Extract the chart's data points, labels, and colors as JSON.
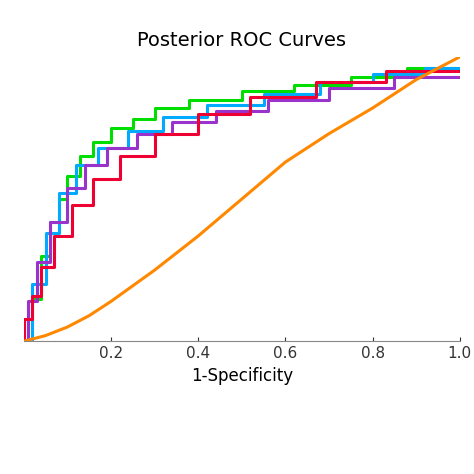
{
  "title": "Posterior ROC Curves",
  "xlabel": "1-Specificity",
  "xlim": [
    0,
    1.0
  ],
  "ylim": [
    0,
    1.0
  ],
  "xticks": [
    0.2,
    0.4,
    0.6,
    0.8,
    1.0
  ],
  "background_color": "#ffffff",
  "title_fontsize": 14,
  "curves": {
    "green": {
      "color": "#00dd00",
      "step": true,
      "fpr": [
        0,
        0.02,
        0.04,
        0.06,
        0.08,
        0.1,
        0.13,
        0.16,
        0.2,
        0.25,
        0.3,
        0.38,
        0.5,
        0.62,
        0.75,
        0.88,
        1.0
      ],
      "tpr": [
        0,
        0.15,
        0.3,
        0.42,
        0.5,
        0.58,
        0.65,
        0.7,
        0.75,
        0.78,
        0.82,
        0.85,
        0.88,
        0.9,
        0.93,
        0.96,
        0.96
      ]
    },
    "blue": {
      "color": "#00aaff",
      "step": true,
      "fpr": [
        0,
        0.02,
        0.05,
        0.08,
        0.12,
        0.17,
        0.24,
        0.32,
        0.42,
        0.55,
        0.68,
        0.8,
        0.92,
        1.0
      ],
      "tpr": [
        0,
        0.2,
        0.38,
        0.52,
        0.62,
        0.68,
        0.74,
        0.79,
        0.83,
        0.87,
        0.91,
        0.94,
        0.96,
        0.96
      ]
    },
    "purple": {
      "color": "#9933cc",
      "step": true,
      "fpr": [
        0,
        0.01,
        0.03,
        0.06,
        0.1,
        0.14,
        0.19,
        0.26,
        0.34,
        0.44,
        0.56,
        0.7,
        0.85,
        1.0
      ],
      "tpr": [
        0,
        0.14,
        0.28,
        0.42,
        0.54,
        0.62,
        0.68,
        0.73,
        0.77,
        0.81,
        0.85,
        0.89,
        0.93,
        0.93
      ]
    },
    "red": {
      "color": "#ee0033",
      "step": true,
      "fpr": [
        0,
        0.0,
        0.02,
        0.04,
        0.07,
        0.11,
        0.16,
        0.22,
        0.3,
        0.4,
        0.52,
        0.67,
        0.83,
        1.0
      ],
      "tpr": [
        0,
        0.08,
        0.16,
        0.26,
        0.37,
        0.48,
        0.57,
        0.65,
        0.73,
        0.8,
        0.86,
        0.91,
        0.95,
        0.95
      ]
    },
    "orange": {
      "color": "#ff8800",
      "step": false,
      "fpr": [
        0.0,
        0.05,
        0.1,
        0.15,
        0.2,
        0.3,
        0.4,
        0.5,
        0.6,
        0.7,
        0.8,
        0.9,
        1.0
      ],
      "tpr": [
        0.0,
        0.02,
        0.05,
        0.09,
        0.14,
        0.25,
        0.37,
        0.5,
        0.63,
        0.73,
        0.82,
        0.92,
        1.0
      ]
    }
  }
}
